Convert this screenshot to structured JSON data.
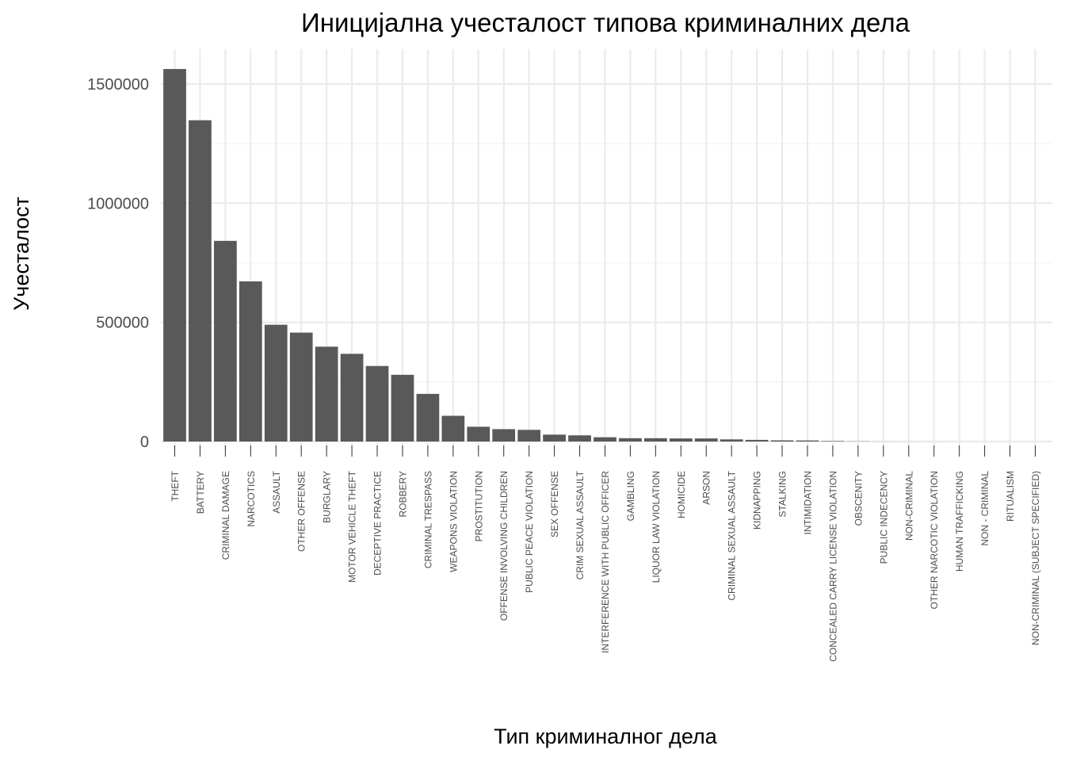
{
  "chart_data": {
    "type": "bar",
    "title": "Иницијална учесталост типова криминалних дела",
    "xlabel": "Тип криминалног дела",
    "ylabel": "Учесталост",
    "ylim": [
      0,
      1620000
    ],
    "yticks": [
      0,
      500000,
      1000000,
      1500000
    ],
    "ytick_labels": [
      "0",
      "500000",
      "1000000",
      "1500000"
    ],
    "grid": true,
    "legend": "none",
    "bar_color": "#595959",
    "categories": [
      "THEFT",
      "BATTERY",
      "CRIMINAL DAMAGE",
      "NARCOTICS",
      "ASSAULT",
      "OTHER OFFENSE",
      "BURGLARY",
      "MOTOR VEHICLE THEFT",
      "DECEPTIVE PRACTICE",
      "ROBBERY",
      "CRIMINAL TRESPASS",
      "WEAPONS VIOLATION",
      "PROSTITUTION",
      "OFFENSE INVOLVING CHILDREN",
      "PUBLIC PEACE VIOLATION",
      "SEX OFFENSE",
      "CRIM SEXUAL ASSAULT",
      "INTERFERENCE WITH PUBLIC OFFICER",
      "GAMBLING",
      "LIQUOR LAW VIOLATION",
      "HOMICIDE",
      "ARSON",
      "CRIMINAL SEXUAL ASSAULT",
      "KIDNAPPING",
      "STALKING",
      "INTIMIDATION",
      "CONCEALED CARRY LICENSE VIOLATION",
      "OBSCENITY",
      "PUBLIC INDECENCY",
      "NON-CRIMINAL",
      "OTHER NARCOTIC VIOLATION",
      "HUMAN TRAFFICKING",
      "NON - CRIMINAL",
      "RITUALISM",
      "NON-CRIMINAL (SUBJECT SPECIFIED)"
    ],
    "values": [
      1563000,
      1348000,
      842000,
      672000,
      490000,
      457000,
      398000,
      368000,
      317000,
      280000,
      200000,
      108000,
      62000,
      52000,
      49000,
      29000,
      26000,
      18000,
      14000,
      14000,
      13000,
      13000,
      9000,
      7000,
      5000,
      4500,
      2000,
      800,
      200,
      150,
      130,
      80,
      50,
      30,
      10
    ]
  }
}
